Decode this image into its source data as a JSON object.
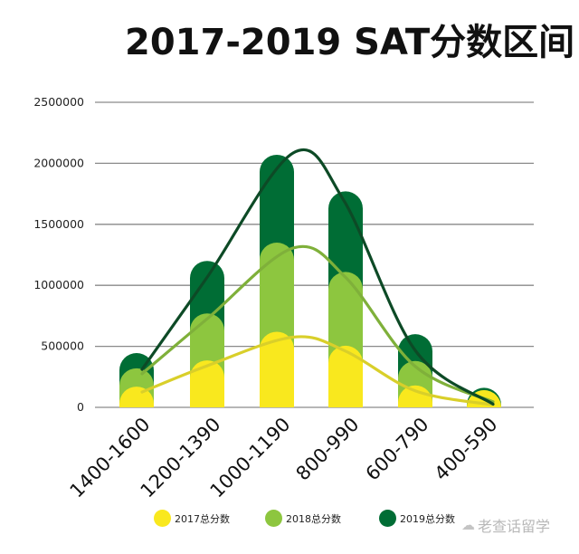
{
  "title": "2017-2019 SAT分数区间",
  "legend": [
    {
      "label": "2017总分数",
      "color": "#f9e81e"
    },
    {
      "label": "2018总分数",
      "color": "#8dc63f"
    },
    {
      "label": "2019总分数",
      "color": "#006d35"
    }
  ],
  "watermark": {
    "icon": "wechat-icon",
    "text": "老查话留学"
  },
  "chart_data": {
    "type": "bar",
    "title": "2017-2019 SAT分数区间",
    "xlabel": "",
    "ylabel": "",
    "ylim": [
      0,
      2500000
    ],
    "yticks": [
      0,
      500000,
      1000000,
      1500000,
      2000000,
      2500000
    ],
    "ytick_labels": [
      "0",
      "500000",
      "1000000",
      "1500000",
      "2000000",
      "2500000"
    ],
    "grid": true,
    "legend_position": "bottom",
    "categories": [
      "1400-1600",
      "1200-1390",
      "1000-1190",
      "800-990",
      "600-790",
      "400-590"
    ],
    "series": [
      {
        "name": "2017总分数",
        "color": "#f9e81e",
        "curve_color": "#d9cf2a",
        "values": [
          170000,
          385000,
          620000,
          505000,
          180000,
          65000
        ]
      },
      {
        "name": "2018总分数",
        "color": "#8dc63f",
        "curve_color": "#7fb03a",
        "values": [
          320000,
          770000,
          1350000,
          1110000,
          380000,
          90000
        ]
      },
      {
        "name": "2019总分数",
        "color": "#006d35",
        "curve_color": "#0d4a26",
        "values": [
          445000,
          1200000,
          2070000,
          1770000,
          600000,
          160000
        ]
      }
    ],
    "overlay": "smoothed trend curve per series"
  }
}
